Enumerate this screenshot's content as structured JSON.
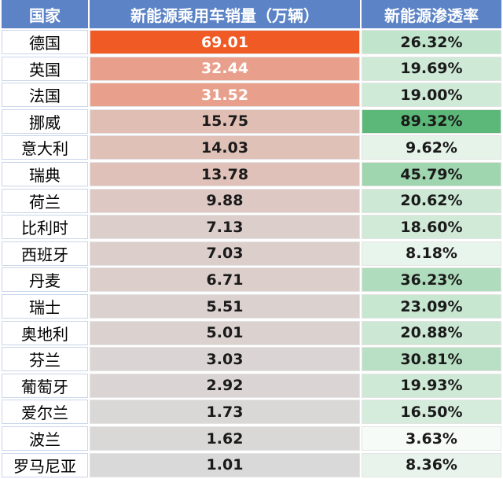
{
  "header": {
    "country": "国家",
    "sales": "新能源乘用车销量（万辆）",
    "share": "新能源渗透率"
  },
  "chart_data": {
    "type": "table",
    "columns": [
      "国家",
      "新能源乘用车销量（万辆）",
      "新能源渗透率"
    ],
    "rows": [
      {
        "country": "德国",
        "sales": "69.01",
        "share": "26.32%"
      },
      {
        "country": "英国",
        "sales": "32.44",
        "share": "19.69%"
      },
      {
        "country": "法国",
        "sales": "31.52",
        "share": "19.00%"
      },
      {
        "country": "挪威",
        "sales": "15.75",
        "share": "89.32%"
      },
      {
        "country": "意大利",
        "sales": "14.03",
        "share": "9.62%"
      },
      {
        "country": "瑞典",
        "sales": "13.78",
        "share": "45.79%"
      },
      {
        "country": "荷兰",
        "sales": "9.88",
        "share": "20.62%"
      },
      {
        "country": "比利时",
        "sales": "7.13",
        "share": "18.60%"
      },
      {
        "country": "西班牙",
        "sales": "7.03",
        "share": "8.18%"
      },
      {
        "country": "丹麦",
        "sales": "6.71",
        "share": "36.23%"
      },
      {
        "country": "瑞士",
        "sales": "5.51",
        "share": "23.09%"
      },
      {
        "country": "奥地利",
        "sales": "5.01",
        "share": "20.88%"
      },
      {
        "country": "芬兰",
        "sales": "3.03",
        "share": "30.81%"
      },
      {
        "country": "葡萄牙",
        "sales": "2.92",
        "share": "19.93%"
      },
      {
        "country": "爱尔兰",
        "sales": "1.73",
        "share": "16.50%"
      },
      {
        "country": "波兰",
        "sales": "1.62",
        "share": "3.63%"
      },
      {
        "country": "罗马尼亚",
        "sales": "1.01",
        "share": "8.36%"
      }
    ],
    "colors": {
      "header_bg": "#5b83c6",
      "sales_high": "#f05a24",
      "sales_mid": "#e8a08c",
      "sales_low": "#d9d9d9",
      "share_high": "#5cb878",
      "share_low": "#f7fbf8"
    }
  }
}
